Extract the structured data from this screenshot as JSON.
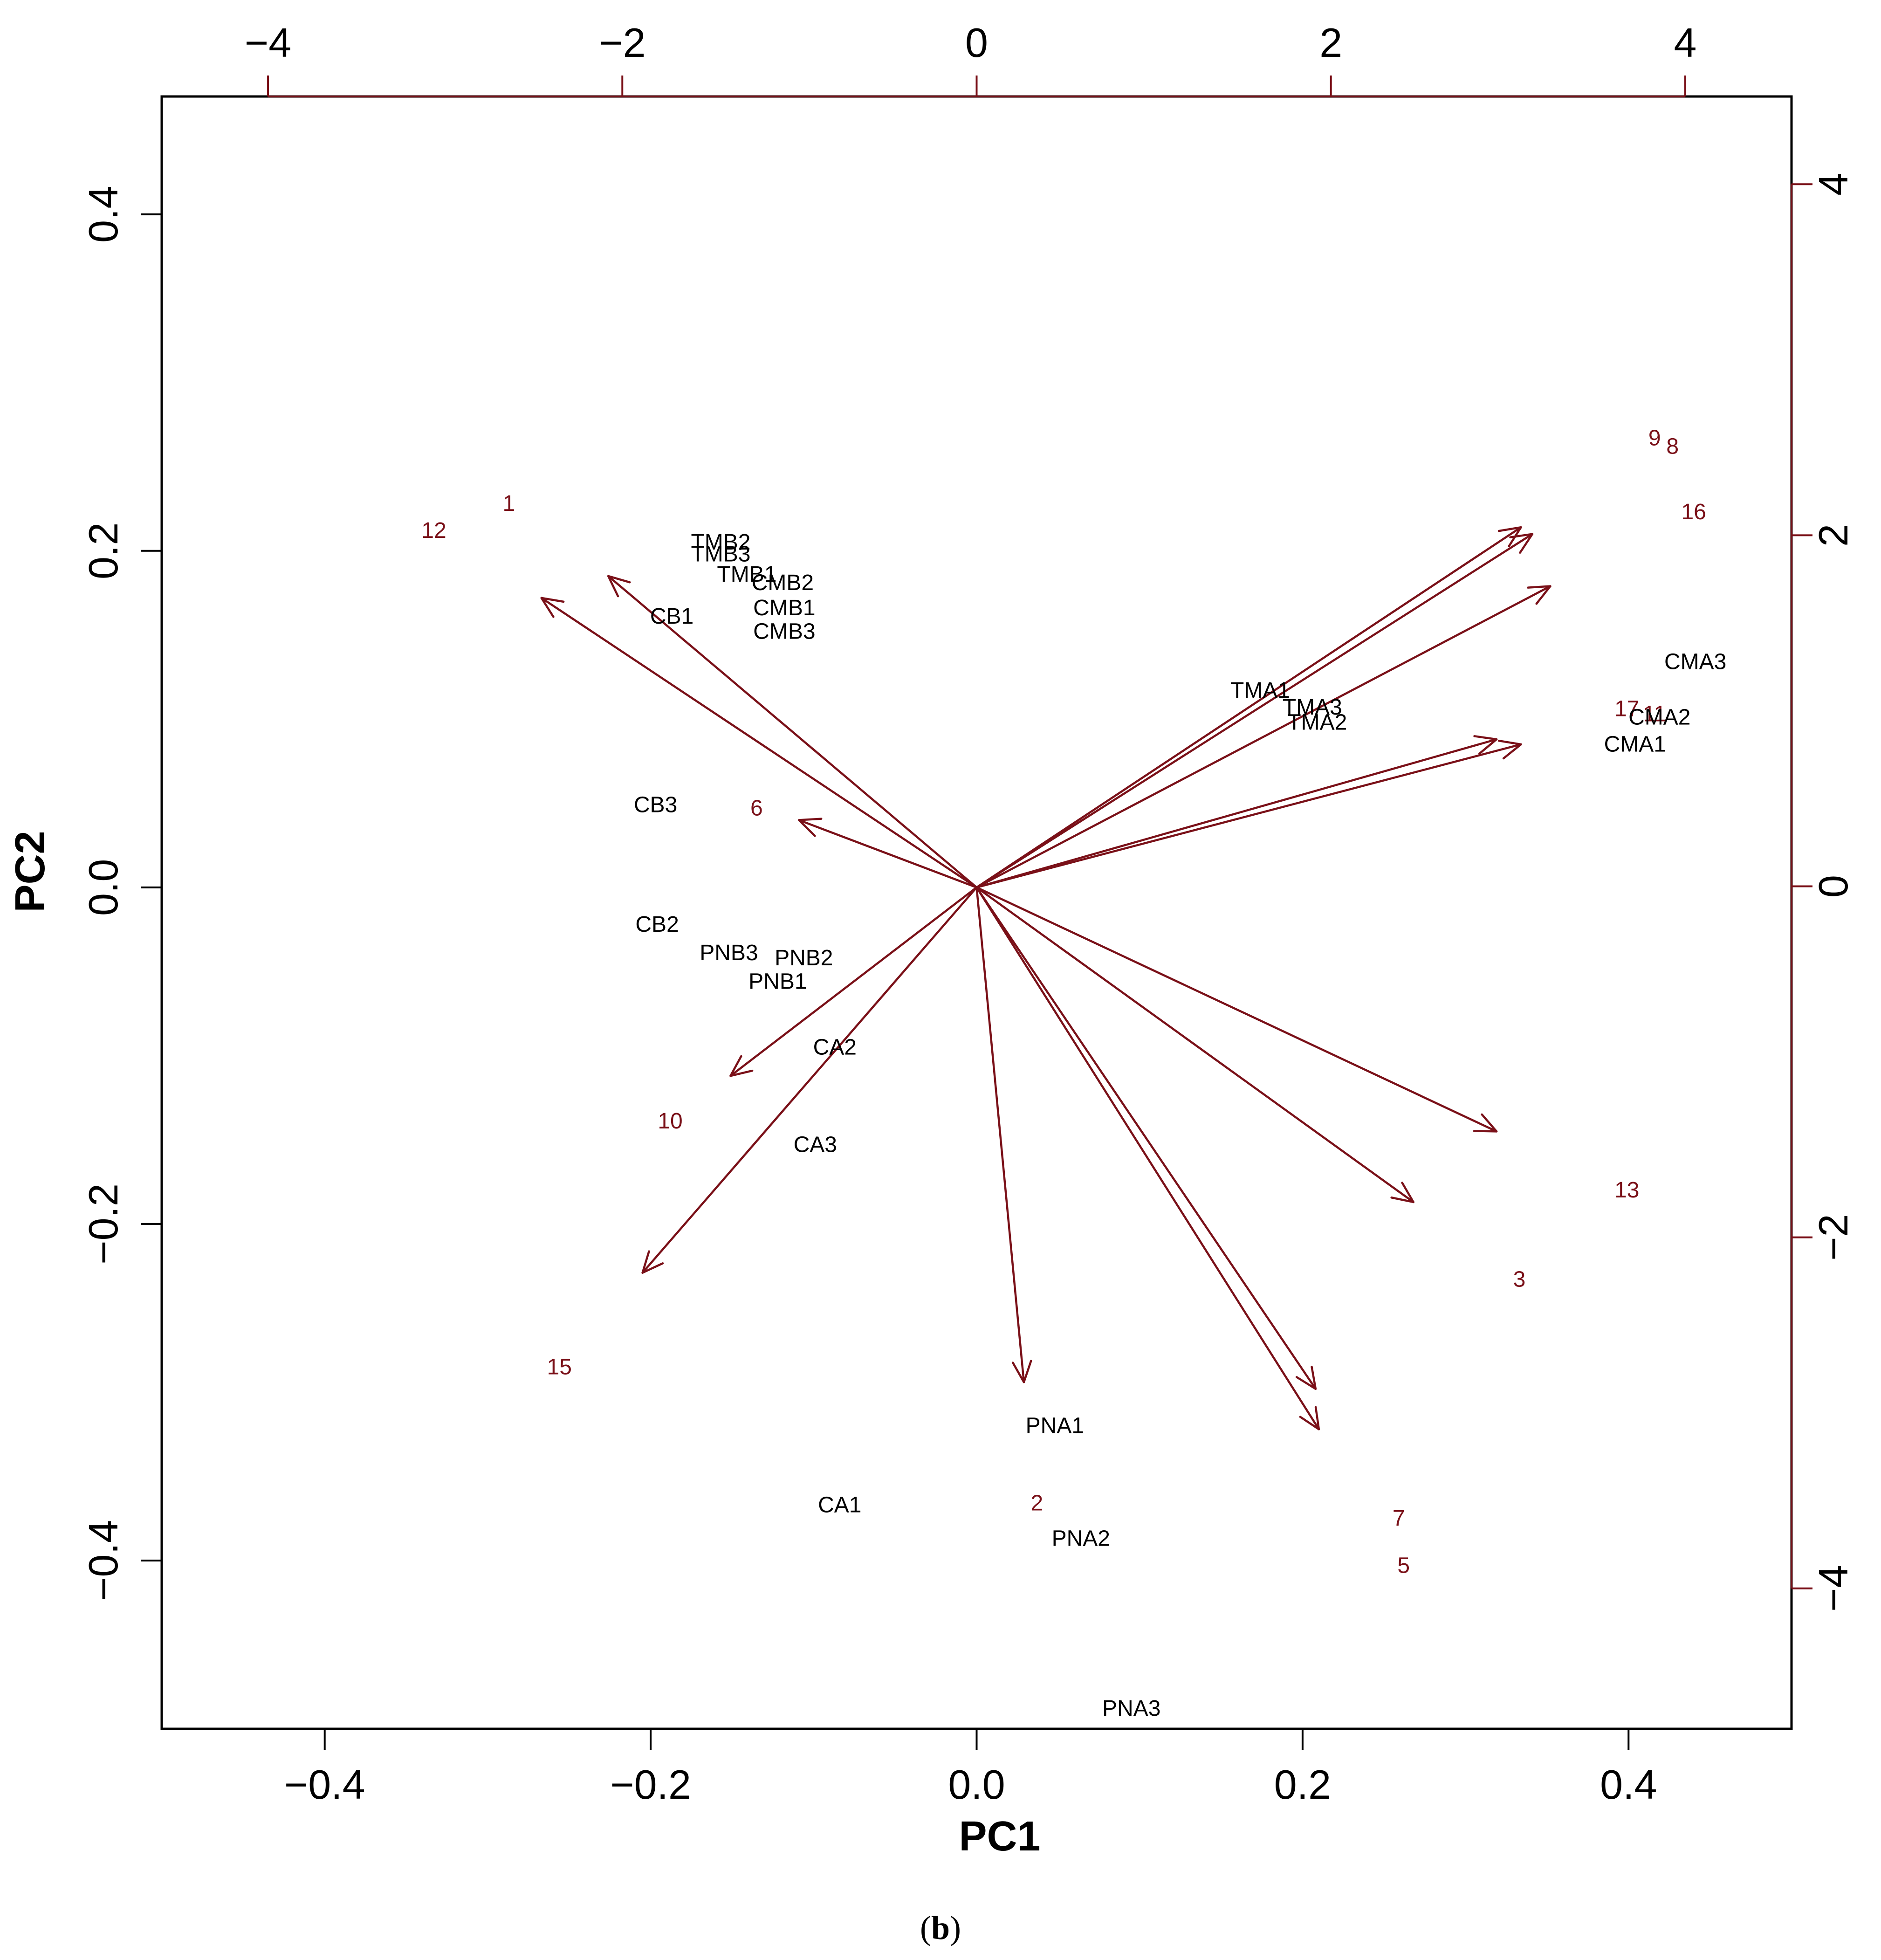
{
  "figure": {
    "caption_open": "(",
    "caption_letter": "b",
    "caption_close": ")"
  },
  "chart_data": {
    "type": "scatter",
    "subtype": "pca-biplot",
    "title": "",
    "xlabel": "PC1",
    "ylabel": "PC2",
    "xlim": [
      -0.5,
      0.5
    ],
    "ylim": [
      -0.5,
      0.47
    ],
    "xticks": [
      -0.4,
      -0.2,
      0.0,
      0.2,
      0.4
    ],
    "xtick_labels": [
      "−0.4",
      "−0.2",
      "0.0",
      "0.2",
      "0.4"
    ],
    "yticks": [
      -0.4,
      -0.2,
      0.0,
      0.2,
      0.4
    ],
    "ytick_labels": [
      "−0.4",
      "−0.2",
      "0.0",
      "0.2",
      "0.4"
    ],
    "secondary_xlim": [
      -4.6,
      4.6
    ],
    "secondary_xticks": [
      -4,
      -2,
      0,
      2,
      4
    ],
    "secondary_xtick_labels": [
      "−4",
      "−2",
      "0",
      "2",
      "4"
    ],
    "secondary_ylim": [
      -4.8,
      4.5
    ],
    "secondary_yticks": [
      -4,
      -2,
      0,
      2,
      4
    ],
    "secondary_ytick_labels": [
      "−4",
      "−2",
      "0",
      "2",
      "4"
    ],
    "colors": {
      "observations": "#7a1018",
      "arrows": "#7a1018",
      "variables": "#000000"
    },
    "observations": [
      {
        "label": "1",
        "x": -0.287,
        "y": 0.228
      },
      {
        "label": "12",
        "x": -0.333,
        "y": 0.212
      },
      {
        "label": "9",
        "x": 0.416,
        "y": 0.267
      },
      {
        "label": "8",
        "x": 0.427,
        "y": 0.262
      },
      {
        "label": "16",
        "x": 0.44,
        "y": 0.223
      },
      {
        "label": "17",
        "x": 0.399,
        "y": 0.106
      },
      {
        "label": "11",
        "x": 0.416,
        "y": 0.103
      },
      {
        "label": "6",
        "x": -0.135,
        "y": 0.047
      },
      {
        "label": "10",
        "x": -0.188,
        "y": -0.139
      },
      {
        "label": "13",
        "x": 0.399,
        "y": -0.18
      },
      {
        "label": "3",
        "x": 0.333,
        "y": -0.233
      },
      {
        "label": "15",
        "x": -0.256,
        "y": -0.285
      },
      {
        "label": "2",
        "x": 0.037,
        "y": -0.366
      },
      {
        "label": "7",
        "x": 0.259,
        "y": -0.375
      },
      {
        "label": "5",
        "x": 0.262,
        "y": -0.403
      }
    ],
    "variables": [
      {
        "label": "TMB2",
        "x": -0.157,
        "y": 0.205
      },
      {
        "label": "TMB3",
        "x": -0.157,
        "y": 0.198
      },
      {
        "label": "TMB1",
        "x": -0.141,
        "y": 0.186
      },
      {
        "label": "CMB2",
        "x": -0.119,
        "y": 0.181
      },
      {
        "label": "CMB1",
        "x": -0.118,
        "y": 0.166
      },
      {
        "label": "CMB3",
        "x": -0.118,
        "y": 0.152
      },
      {
        "label": "CB1",
        "x": -0.187,
        "y": 0.161
      },
      {
        "label": "CB3",
        "x": -0.197,
        "y": 0.049
      },
      {
        "label": "CB2",
        "x": -0.196,
        "y": -0.022
      },
      {
        "label": "PNB3",
        "x": -0.152,
        "y": -0.039
      },
      {
        "label": "PNB2",
        "x": -0.106,
        "y": -0.042
      },
      {
        "label": "PNB1",
        "x": -0.122,
        "y": -0.056
      },
      {
        "label": "CA2",
        "x": -0.087,
        "y": -0.095
      },
      {
        "label": "CA3",
        "x": -0.099,
        "y": -0.153
      },
      {
        "label": "TMA1",
        "x": 0.174,
        "y": 0.117
      },
      {
        "label": "TMA3",
        "x": 0.206,
        "y": 0.107
      },
      {
        "label": "TMA2",
        "x": 0.209,
        "y": 0.098
      },
      {
        "label": "CMA3",
        "x": 0.441,
        "y": 0.134
      },
      {
        "label": "CMA2",
        "x": 0.419,
        "y": 0.101
      },
      {
        "label": "CMA1",
        "x": 0.404,
        "y": 0.085
      },
      {
        "label": "PNA1",
        "x": 0.048,
        "y": -0.32
      },
      {
        "label": "CA1",
        "x": -0.084,
        "y": -0.367
      },
      {
        "label": "PNA2",
        "x": 0.064,
        "y": -0.387
      },
      {
        "label": "PNA3",
        "x": 0.095,
        "y": -0.488
      }
    ],
    "loading_arrows": [
      {
        "x": -0.267,
        "y": 0.172
      },
      {
        "x": -0.226,
        "y": 0.185
      },
      {
        "x": -0.109,
        "y": 0.04
      },
      {
        "x": 0.334,
        "y": 0.214
      },
      {
        "x": 0.341,
        "y": 0.21
      },
      {
        "x": 0.352,
        "y": 0.179
      },
      {
        "x": 0.319,
        "y": 0.088
      },
      {
        "x": 0.334,
        "y": 0.085
      },
      {
        "x": -0.151,
        "y": -0.112
      },
      {
        "x": -0.205,
        "y": -0.229
      },
      {
        "x": 0.029,
        "y": -0.294
      },
      {
        "x": 0.208,
        "y": -0.298
      },
      {
        "x": 0.21,
        "y": -0.322
      },
      {
        "x": 0.268,
        "y": -0.187
      },
      {
        "x": 0.319,
        "y": -0.145
      }
    ]
  }
}
